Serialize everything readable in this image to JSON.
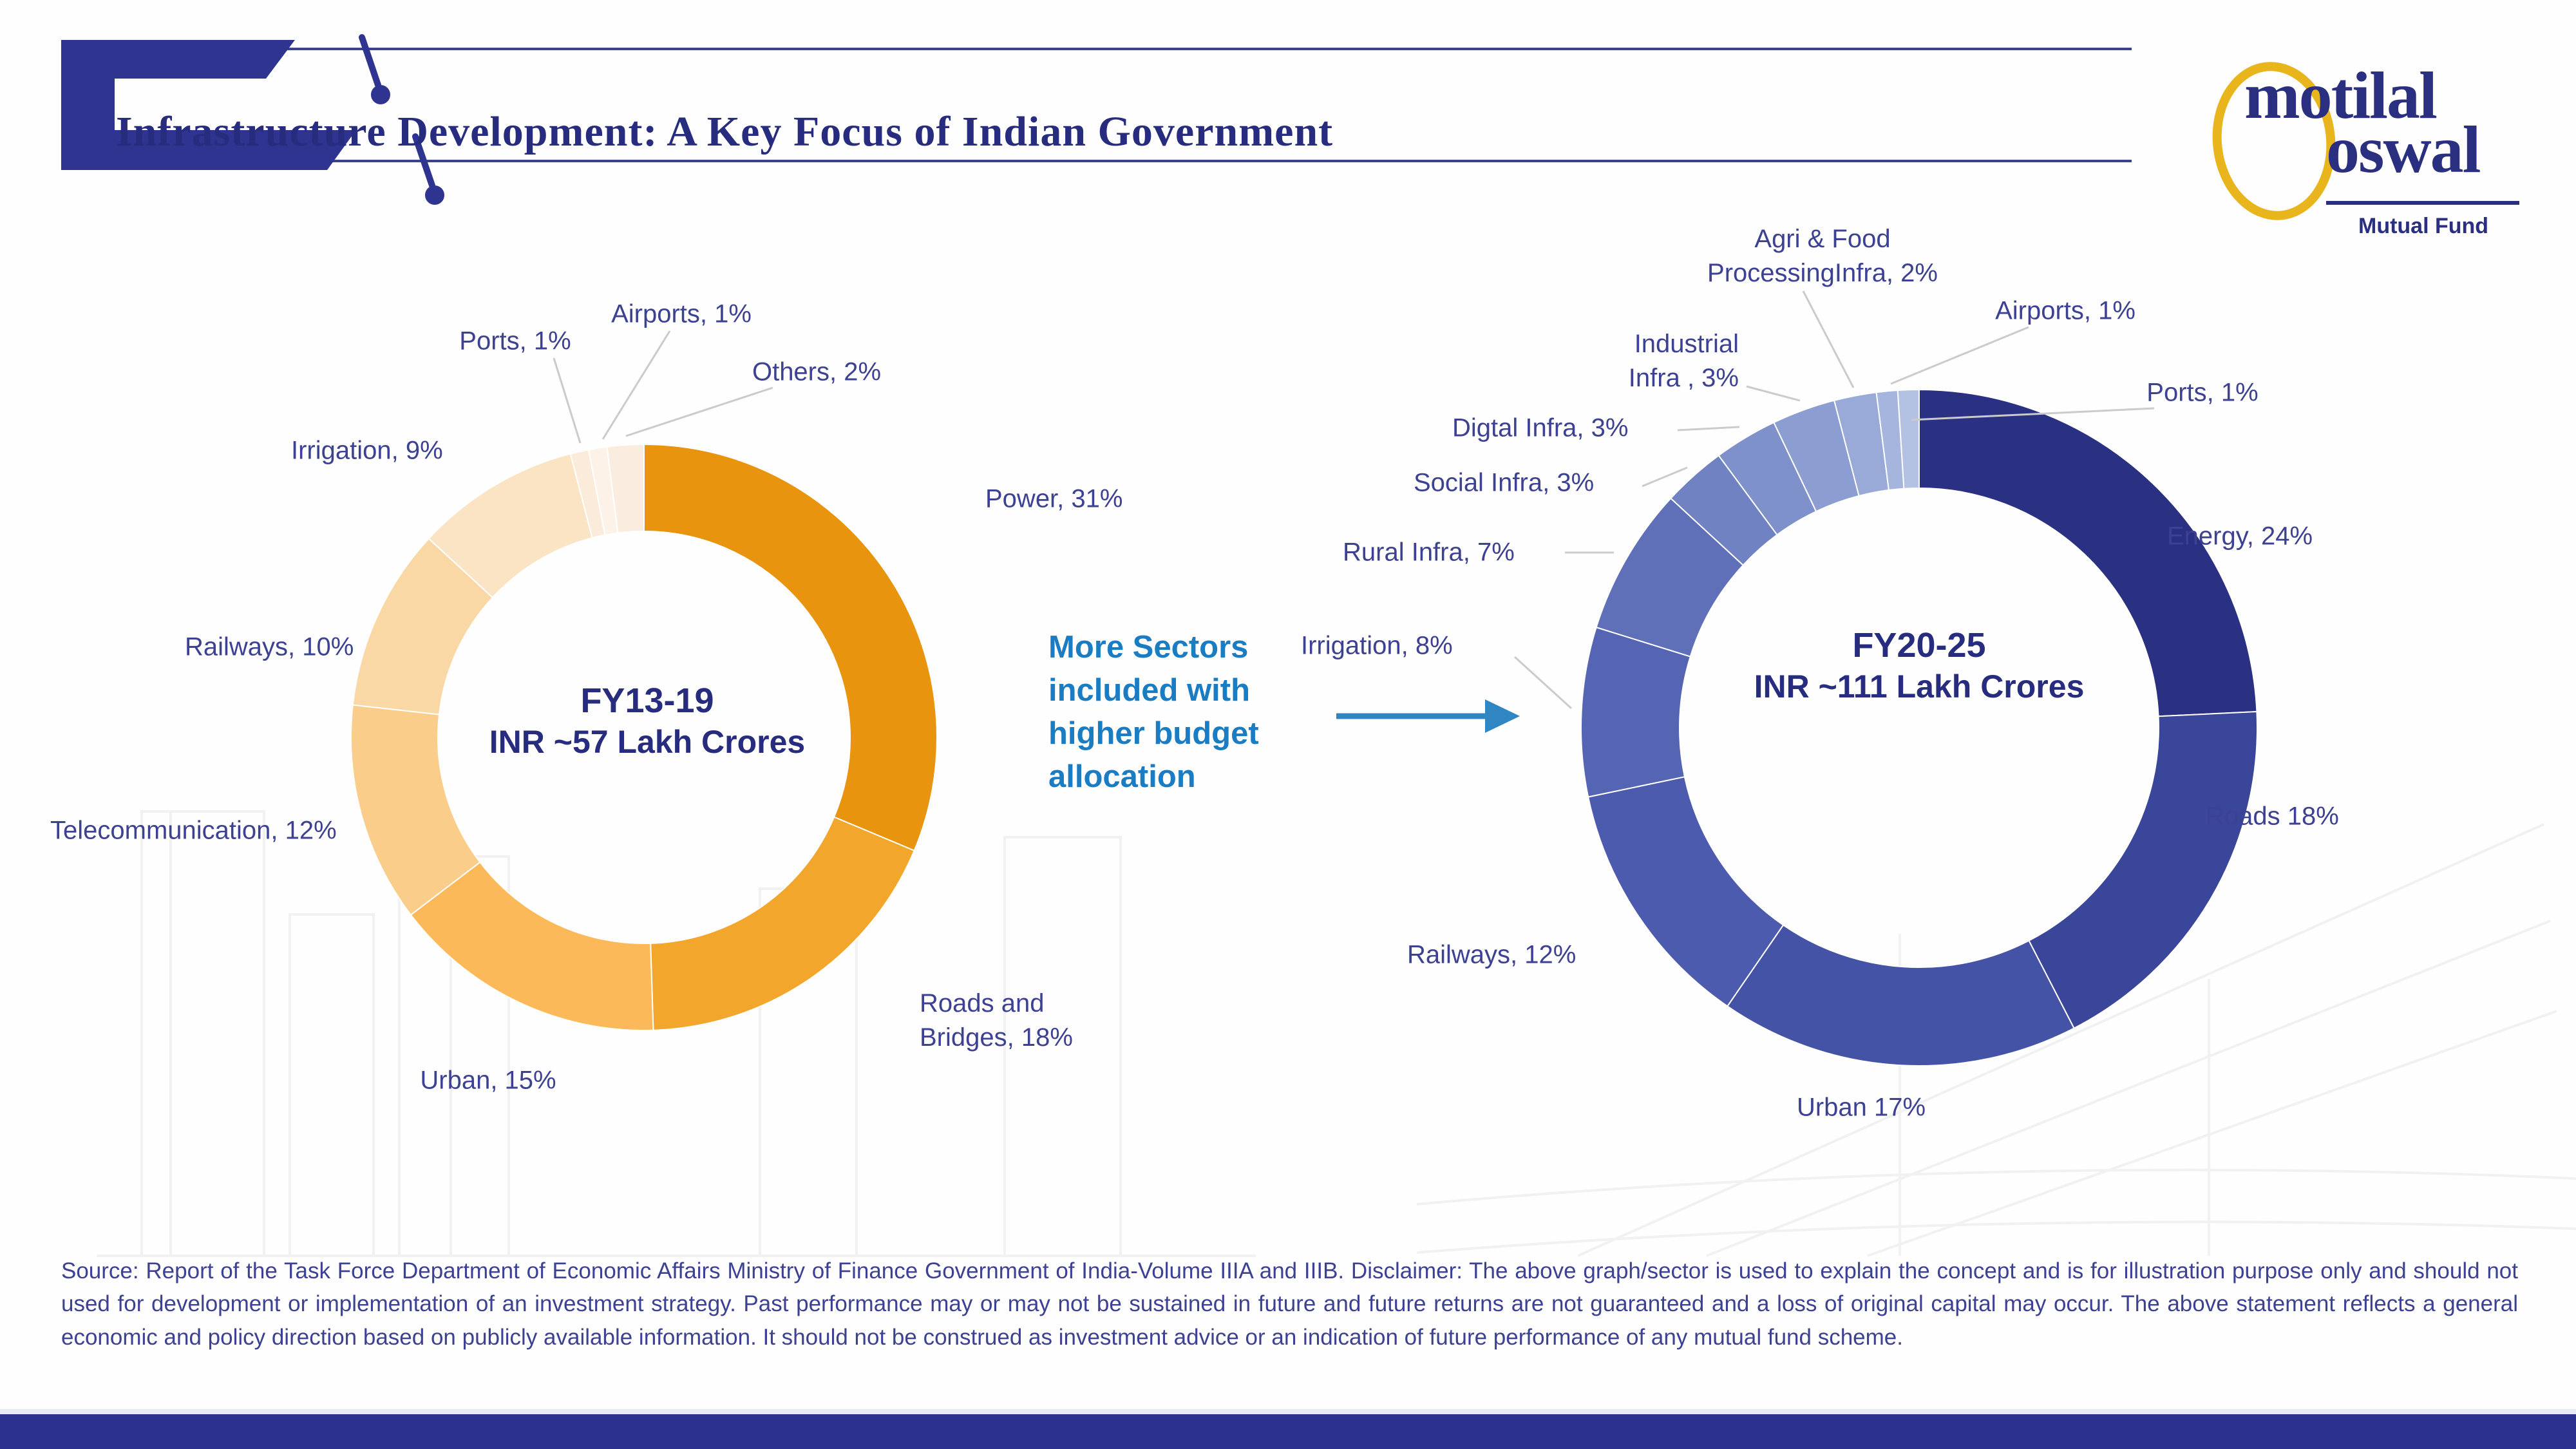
{
  "header": {
    "title": "Infrastructure Development: A Key Focus of Indian Government",
    "logo": {
      "line1": "motilal",
      "line2": "oswal",
      "subtitle": "Mutual Fund",
      "ring_color": "#E9B51C",
      "text_color": "#2A2F80"
    }
  },
  "callout": {
    "text": "More Sectors\nincluded with\nhigher budget\nallocation",
    "color": "#1A7CC2"
  },
  "chart_data": [
    {
      "type": "pie",
      "subtype": "donut",
      "title": "FY13-19",
      "subtitle": "INR ~57 Lakh Crores",
      "unit": "%",
      "legend_position": "outside-labels",
      "slices": [
        {
          "label": "Power",
          "value": 31,
          "display": "Power, 31%",
          "color": "#E8940E"
        },
        {
          "label": "Roads and Bridges",
          "value": 18,
          "display": [
            "Roads and",
            "Bridges, 18%"
          ],
          "color": "#F2A62B"
        },
        {
          "label": "Urban",
          "value": 15,
          "display": "Urban, 15%",
          "color": "#FBB95A"
        },
        {
          "label": "Telecommunication",
          "value": 12,
          "display": "Telecommunication, 12%",
          "color": "#FACD8A"
        },
        {
          "label": "Railways",
          "value": 10,
          "display": "Railways, 10%",
          "color": "#FAD8A6"
        },
        {
          "label": "Irrigation",
          "value": 9,
          "display": "Irrigation, 9%",
          "color": "#FAE4C4"
        },
        {
          "label": "Ports",
          "value": 1,
          "display": "Ports, 1%",
          "color": "#FBEBDA"
        },
        {
          "label": "Airports",
          "value": 1,
          "display": "Airports, 1%",
          "color": "#FCF2E8"
        },
        {
          "label": "Others",
          "value": 2,
          "display": "Others, 2%",
          "color": "#FAECDF"
        }
      ]
    },
    {
      "type": "pie",
      "subtype": "donut",
      "title": "FY20-25",
      "subtitle": "INR ~111 Lakh Crores",
      "unit": "%",
      "legend_position": "outside-labels",
      "slices": [
        {
          "label": "Energy",
          "value": 24,
          "display": "Energy, 24%",
          "color": "#2A3182"
        },
        {
          "label": "Roads",
          "value": 18,
          "display": "Roads 18%",
          "color": "#3A4699"
        },
        {
          "label": "Urban",
          "value": 17,
          "display": "Urban 17%",
          "color": "#4553A7"
        },
        {
          "label": "Railways",
          "value": 12,
          "display": "Railways, 12%",
          "color": "#4D5BAE"
        },
        {
          "label": "Irrigation",
          "value": 8,
          "display": "Irrigation, 8%",
          "color": "#5565B3"
        },
        {
          "label": "Rural Infra",
          "value": 7,
          "display": "Rural Infra, 7%",
          "color": "#5F70B9"
        },
        {
          "label": "Social Infra",
          "value": 3,
          "display": "Social Infra, 3%",
          "color": "#7182C2"
        },
        {
          "label": "Digital Infra",
          "value": 3,
          "display": "Digtal Infra, 3%",
          "color": "#7F91CA"
        },
        {
          "label": "Industrial Infra",
          "value": 3,
          "display": [
            "Industrial",
            "Infra , 3%"
          ],
          "color": "#8C9ED1"
        },
        {
          "label": "Agri & Food Processing Infra",
          "value": 2,
          "display": [
            "Agri & Food",
            "ProcessingInfra, 2%"
          ],
          "color": "#99AAD8"
        },
        {
          "label": "Airports",
          "value": 1,
          "display": "Airports, 1%",
          "color": "#A6B5DE"
        },
        {
          "label": "Ports",
          "value": 1,
          "display": "Ports, 1%",
          "color": "#B3C1E3"
        }
      ]
    }
  ],
  "disclaimer": "Source: Report of the Task Force Department of Economic Affairs Ministry of Finance Government of India-Volume IIIA and IIIB. Disclaimer: The above graph/sector is used to explain the concept and is for illustration purpose only and should not used for development or implementation of an investment strategy. Past performance may or may not be sustained in future and future returns are not guaranteed and a loss of original capital may occur. The above statement reflects a general economic and policy direction based on publicly available information. It should not be construed as investment advice or an indication of future performance of any mutual fund scheme.",
  "colors": {
    "title_navy": "#272C7E",
    "label_indigo": "#3D4193",
    "accent_blue": "#1A7CC2",
    "arrow_blue": "#2F86C2",
    "leader_gray": "#CBCBCB",
    "footer_bar": "#2C3190",
    "logo_gold": "#E9B51C"
  }
}
